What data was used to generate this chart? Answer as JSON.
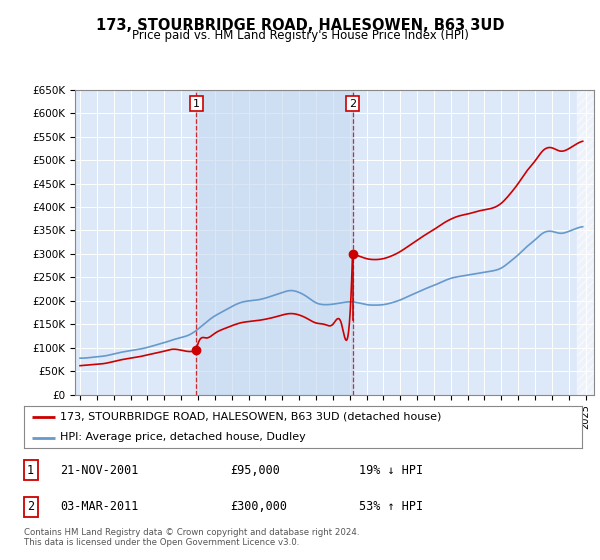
{
  "title": "173, STOURBRIDGE ROAD, HALESOWEN, B63 3UD",
  "subtitle": "Price paid vs. HM Land Registry's House Price Index (HPI)",
  "plot_bg_color": "#dde8f8",
  "hpi_color": "#6699cc",
  "price_color": "#cc0000",
  "vline_color": "#cc0000",
  "shade_color": "#c5d8f0",
  "ylim": [
    0,
    650000
  ],
  "yticks": [
    0,
    50000,
    100000,
    150000,
    200000,
    250000,
    300000,
    350000,
    400000,
    450000,
    500000,
    550000,
    600000,
    650000
  ],
  "ytick_labels": [
    "£0",
    "£50K",
    "£100K",
    "£150K",
    "£200K",
    "£250K",
    "£300K",
    "£350K",
    "£400K",
    "£450K",
    "£500K",
    "£550K",
    "£600K",
    "£650K"
  ],
  "xmin": 1994.7,
  "xmax": 2025.5,
  "sale1_x": 2001.9,
  "sale1_y": 95000,
  "sale2_x": 2011.17,
  "sale2_y": 300000,
  "legend_line1": "173, STOURBRIDGE ROAD, HALESOWEN, B63 3UD (detached house)",
  "legend_line2": "HPI: Average price, detached house, Dudley",
  "footer": "Contains HM Land Registry data © Crown copyright and database right 2024.\nThis data is licensed under the Open Government Licence v3.0."
}
